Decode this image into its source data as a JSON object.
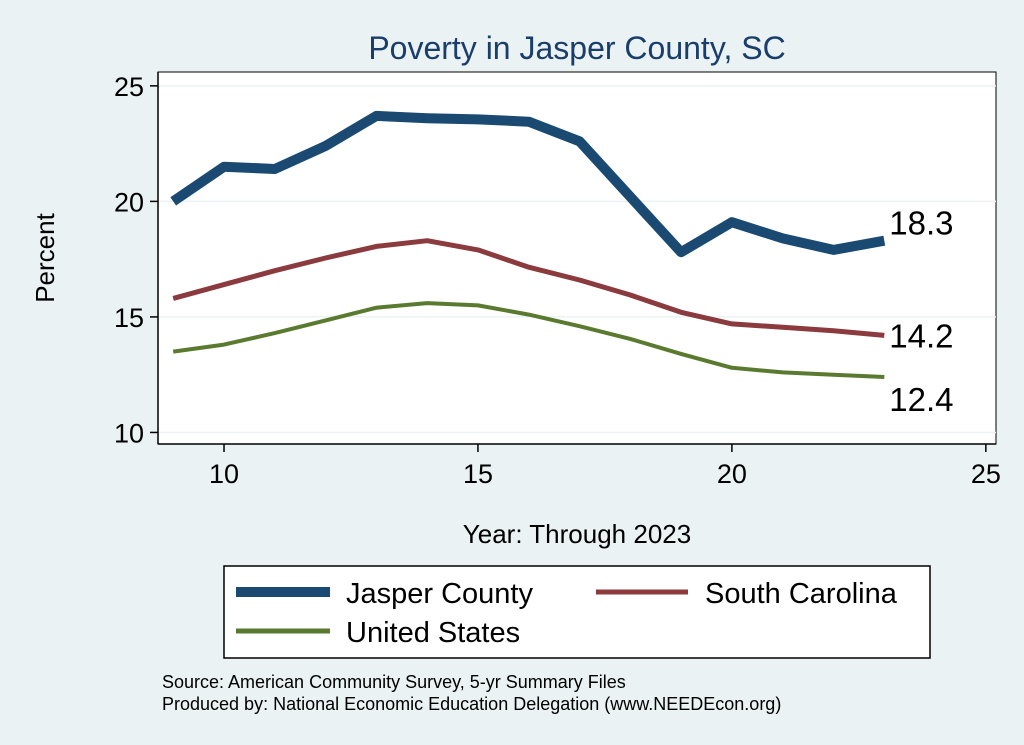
{
  "chart_data": {
    "type": "line",
    "title": "Poverty in Jasper County, SC",
    "xlabel": "Year: Through 2023",
    "ylabel": "Percent",
    "xlim": [
      8.7,
      25.2
    ],
    "ylim": [
      9.5,
      25.6
    ],
    "xticks": [
      10,
      15,
      20,
      25
    ],
    "yticks": [
      10,
      15,
      20,
      25
    ],
    "grid": true,
    "x": [
      9,
      10,
      11,
      12,
      13,
      14,
      15,
      16,
      17,
      18,
      19,
      20,
      21,
      22,
      23
    ],
    "series": [
      {
        "name": "Jasper County",
        "color": "#1a4971",
        "values": [
          20.0,
          21.5,
          21.4,
          22.4,
          23.7,
          23.6,
          23.55,
          23.45,
          22.6,
          20.2,
          17.8,
          19.1,
          18.4,
          17.9,
          18.3
        ],
        "end_label": "18.3"
      },
      {
        "name": "South Carolina",
        "color": "#8b3a3e",
        "values": [
          15.8,
          16.4,
          17.0,
          17.55,
          18.05,
          18.3,
          17.9,
          17.15,
          16.6,
          15.95,
          15.2,
          14.7,
          14.55,
          14.4,
          14.2
        ],
        "end_label": "14.2"
      },
      {
        "name": "United States",
        "color": "#5a7a30",
        "values": [
          13.5,
          13.8,
          14.3,
          14.85,
          15.4,
          15.6,
          15.5,
          15.1,
          14.6,
          14.05,
          13.4,
          12.8,
          12.6,
          12.5,
          12.4
        ],
        "end_label": "12.4"
      }
    ]
  },
  "source_line": "Source: American Community Survey, 5-yr Summary Files",
  "produced_line": "Produced by: National Economic Education Delegation (www.NEEDEcon.org)"
}
